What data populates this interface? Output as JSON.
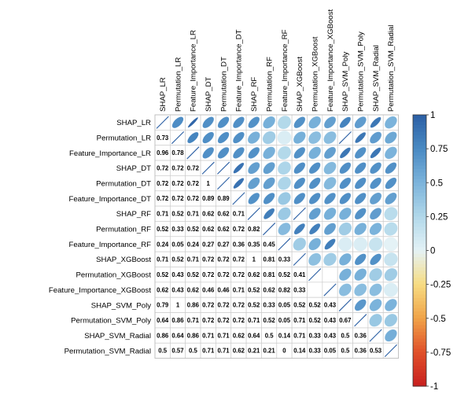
{
  "chart_data": {
    "type": "heatmap",
    "variables": [
      "SHAP_LR",
      "Permutation_LR",
      "Feature_Importance_LR",
      "SHAP_DT",
      "Permutation_DT",
      "Feature_Importance_DT",
      "SHAP_RF",
      "Permutation_RF",
      "Feature_Importance_RF",
      "SHAP_XGBoost",
      "Permutation_XGBoost",
      "Feature_Importance_XGBoost",
      "SHAP_SVM_Poly",
      "Permutation_SVM_Poly",
      "SHAP_SVM_Radial",
      "Permutation_SVM_Radial"
    ],
    "lower_labels": [
      [],
      [
        "0.73"
      ],
      [
        "0.96",
        "0.78"
      ],
      [
        "0.72",
        "0.72",
        "0.72"
      ],
      [
        "0.72",
        "0.72",
        "0.72",
        "1"
      ],
      [
        "0.72",
        "0.72",
        "0.72",
        "0.89",
        "0.89"
      ],
      [
        "0.71",
        "0.52",
        "0.71",
        "0.62",
        "0.62",
        "0.71"
      ],
      [
        "0.52",
        "0.33",
        "0.52",
        "0.62",
        "0.62",
        "0.72",
        "0.82"
      ],
      [
        "0.24",
        "0.05",
        "0.24",
        "0.27",
        "0.27",
        "0.36",
        "0.35",
        "0.45"
      ],
      [
        "0.71",
        "0.52",
        "0.71",
        "0.72",
        "0.72",
        "0.72",
        "1",
        "0.81",
        "0.33"
      ],
      [
        "0.52",
        "0.43",
        "0.52",
        "0.72",
        "0.72",
        "0.72",
        "0.62",
        "0.81",
        "0.52",
        "0.41"
      ],
      [
        "0.62",
        "0.43",
        "0.62",
        "0.46",
        "0.46",
        "0.71",
        "0.52",
        "0.62",
        "0.82",
        "0.33"
      ],
      [
        "0.79",
        "1",
        "0.86",
        "0.72",
        "0.72",
        "0.72",
        "0.52",
        "0.33",
        "0.05",
        "0.52",
        "0.52",
        "0.43"
      ],
      [
        "0.64",
        "0.86",
        "0.71",
        "0.72",
        "0.72",
        "0.72",
        "0.71",
        "0.52",
        "0.05",
        "0.71",
        "0.52",
        "0.43",
        "0.67"
      ],
      [
        "0.86",
        "0.64",
        "0.86",
        "0.71",
        "0.71",
        "0.62",
        "0.64",
        "0.5",
        "0.14",
        "0.71",
        "0.33",
        "0.43",
        "0.5",
        "0.36"
      ],
      [
        "0.5",
        "0.57",
        "0.5",
        "0.71",
        "0.71",
        "0.62",
        "0.21",
        "0.21",
        "0",
        "0.14",
        "0.33",
        "0.05",
        "0.5",
        "0.36",
        "0.53"
      ]
    ],
    "legend": {
      "placement": "right",
      "ticks": [
        "1",
        "0.75",
        "0.5",
        "0.25",
        "0",
        "-0.25",
        "-0.5",
        "-0.75",
        "-1"
      ],
      "range": [
        -1,
        1
      ]
    },
    "colors": {
      "c1": "#2b5fa4",
      "c075": "#4a8ac3",
      "c05": "#7bb3db",
      "c025": "#b1d8ea",
      "c0": "#e4f2f6",
      "cn025": "#f7dc82",
      "cn05": "#f0a348",
      "cn075": "#e0502a",
      "cn1": "#c8201f"
    }
  }
}
